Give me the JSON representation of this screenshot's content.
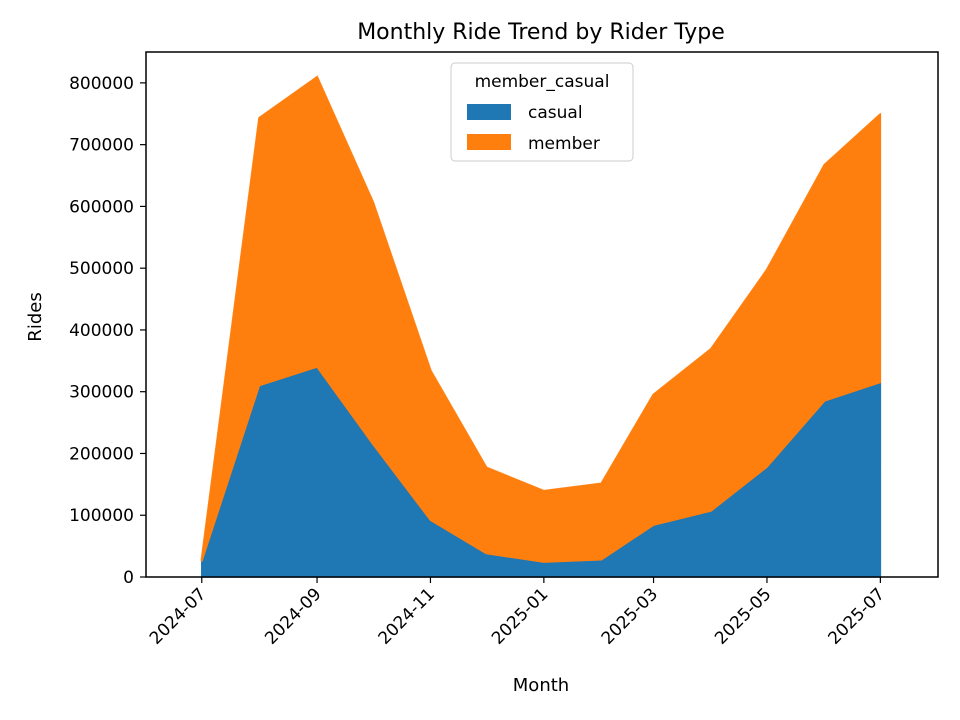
{
  "chart_data": {
    "type": "area",
    "stacked": true,
    "title": "Monthly Ride Trend by Rider Type",
    "xlabel": "Month",
    "ylabel": "Rides",
    "x": [
      "2024-07-01",
      "2024-08-01",
      "2024-09-01",
      "2024-10-01",
      "2024-11-01",
      "2024-12-01",
      "2025-01-01",
      "2025-02-01",
      "2025-03-01",
      "2025-04-01",
      "2025-05-01",
      "2025-06-01",
      "2025-07-01"
    ],
    "x_range": [
      "2024-06-01",
      "2025-08-01"
    ],
    "xticks": [
      "2024-07",
      "2024-09",
      "2024-11",
      "2025-01",
      "2025-03",
      "2025-05",
      "2025-07"
    ],
    "yticks": [
      "0",
      "100000",
      "200000",
      "300000",
      "400000",
      "500000",
      "600000",
      "700000",
      "800000"
    ],
    "ylim": [
      0,
      850000
    ],
    "legend_title": "member_casual",
    "legend_position": "top-center",
    "grid": false,
    "series": [
      {
        "name": "casual",
        "color": "#1f77b4",
        "values": [
          25000,
          310000,
          340000,
          215000,
          92000,
          38000,
          24000,
          28000,
          84000,
          107000,
          178000,
          285000,
          315000
        ]
      },
      {
        "name": "member",
        "color": "#ff7f0e",
        "values": [
          2000,
          433000,
          469000,
          392000,
          242000,
          139000,
          115000,
          123000,
          211000,
          262000,
          319000,
          382000,
          434000
        ]
      }
    ]
  }
}
